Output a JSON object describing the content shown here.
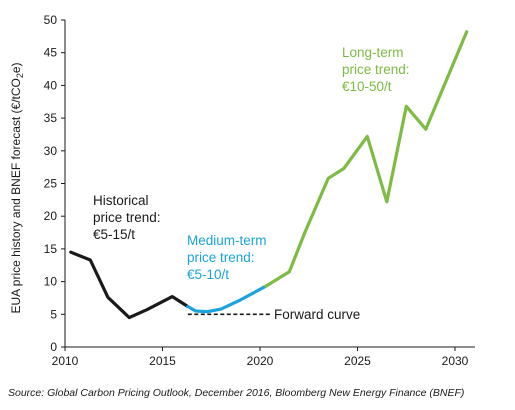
{
  "chart_data": {
    "type": "line",
    "ylabel": "EUA price history and BNEF forecast (€/tCO",
    "ylabel_sub": "2",
    "ylabel_end": "e)",
    "xlim": [
      2010,
      2031
    ],
    "ylim": [
      0,
      50
    ],
    "x_ticks": [
      "2010",
      "2015",
      "2020",
      "2025",
      "2030"
    ],
    "y_ticks": [
      "0",
      "5",
      "10",
      "15",
      "20",
      "25",
      "30",
      "35",
      "40",
      "45",
      "50"
    ],
    "grid": false,
    "series": [
      {
        "color": "#1a1a1a",
        "points": [
          [
            2010.3,
            14.5
          ],
          [
            2011.3,
            13.3
          ],
          [
            2012.2,
            7.6
          ],
          [
            2013.3,
            4.5
          ],
          [
            2014.2,
            5.7
          ],
          [
            2015.5,
            7.7
          ],
          [
            2016.3,
            6.2
          ]
        ]
      },
      {
        "color": "#1aa3dc",
        "points": [
          [
            2016.3,
            6.2
          ],
          [
            2016.7,
            5.5
          ],
          [
            2017.3,
            5.4
          ],
          [
            2018,
            5.8
          ],
          [
            2019,
            7.2
          ],
          [
            2020.3,
            9.3
          ]
        ]
      },
      {
        "color": "#7dbb42",
        "points": [
          [
            2020.3,
            9.3
          ],
          [
            2021.5,
            11.5
          ],
          [
            2022.3,
            17.5
          ],
          [
            2023.5,
            25.8
          ],
          [
            2024.3,
            27.3
          ],
          [
            2025.5,
            32.2
          ],
          [
            2026.5,
            22.2
          ],
          [
            2027.5,
            36.8
          ],
          [
            2028.5,
            33.3
          ],
          [
            2030.6,
            48.2
          ]
        ]
      },
      {
        "color": "#1a1a1a",
        "dashed": true,
        "points": [
          [
            2016.3,
            5.0
          ],
          [
            2020.5,
            5.0
          ]
        ]
      }
    ],
    "annotations": [
      {
        "lines": [
          "Historical",
          "price trend:",
          "€5-15/t"
        ],
        "color": "#1a1a1a"
      },
      {
        "lines": [
          "Medium-term",
          "price trend:",
          "€5-10/t"
        ],
        "color": "#1aa3dc"
      },
      {
        "lines": [
          "Long-term",
          "price trend:",
          "€10-50/t"
        ],
        "color": "#7dbb42"
      },
      {
        "lines": [
          "Forward curve"
        ],
        "color": "#1a1a1a"
      }
    ],
    "source": "Source: Global Carbon Pricing Outlook, December 2016, Bloomberg New Energy Finance (BNEF)"
  }
}
